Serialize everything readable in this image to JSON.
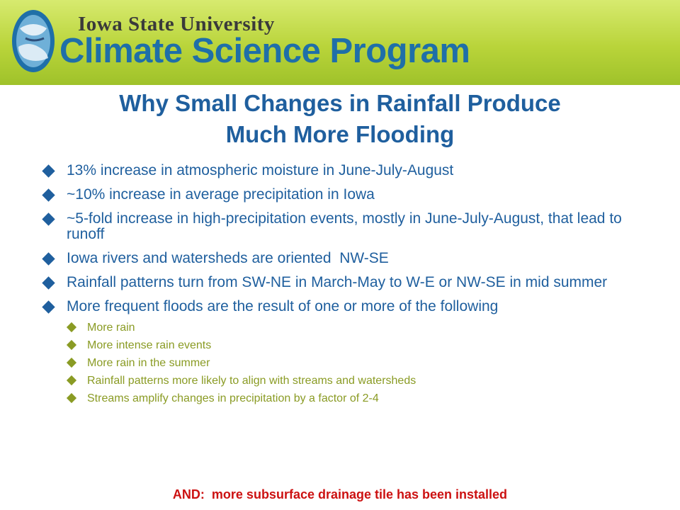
{
  "header": {
    "university": "Iowa State University",
    "program": "Climate Science Program"
  },
  "title": {
    "line1": "Why Small Changes in Rainfall Produce",
    "line2": "Much More Flooding"
  },
  "bullets": [
    "13% increase in atmospheric moisture in June-July-August",
    "~10% increase in average precipitation in Iowa",
    "~5-fold increase in high-precipitation events, mostly in June-July-August, that lead to runoff",
    "Iowa rivers and watersheds are oriented  NW-SE",
    "Rainfall patterns turn from SW-NE in March-May to W-E or NW-SE in mid summer",
    "More frequent floods are the result of one or more of the following"
  ],
  "sub_bullets": [
    "More rain",
    "More intense rain events",
    "More rain in the summer",
    "Rainfall patterns more likely to align with streams and watersheds",
    "Streams amplify changes in precipitation by a factor of 2-4"
  ],
  "footer": "AND:  more subsurface drainage tile has been installed",
  "colors": {
    "title_blue": "#1f5f9e",
    "sub_green": "#8a9b24",
    "footer_red": "#cc1111",
    "header_green": "#b9d43a"
  }
}
